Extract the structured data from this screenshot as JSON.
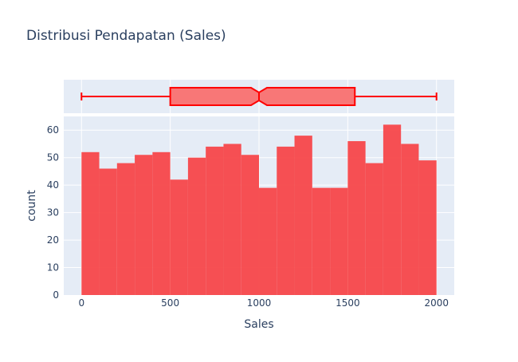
{
  "chart_data": {
    "type": "bar",
    "title": "Distribusi Pendapatan (Sales)",
    "xlabel": "Sales",
    "ylabel": "count",
    "xlim": [
      -100,
      2100
    ],
    "ylim": [
      0,
      65
    ],
    "x_ticks": [
      0,
      500,
      1000,
      1500,
      2000
    ],
    "y_ticks": [
      0,
      10,
      20,
      30,
      40,
      50,
      60
    ],
    "bin_width": 100,
    "bin_starts": [
      0,
      100,
      200,
      300,
      400,
      500,
      600,
      700,
      800,
      900,
      1000,
      1100,
      1200,
      1300,
      1400,
      1500,
      1600,
      1700,
      1800,
      1900
    ],
    "values": [
      52,
      46,
      48,
      51,
      52,
      42,
      50,
      54,
      55,
      51,
      39,
      54,
      58,
      39,
      39,
      56,
      48,
      62,
      55,
      49
    ],
    "bar_color": "#f7474a",
    "marginal_box": {
      "type": "box",
      "min": 0,
      "q1": 500,
      "median": 1000,
      "q3": 1540,
      "max": 2000,
      "notch_low": 955,
      "notch_high": 1045,
      "line_color": "#ff0000",
      "fill_color": "#f87777"
    },
    "grid": true,
    "legend": "none",
    "plot_bg": "#e5ecf6"
  }
}
